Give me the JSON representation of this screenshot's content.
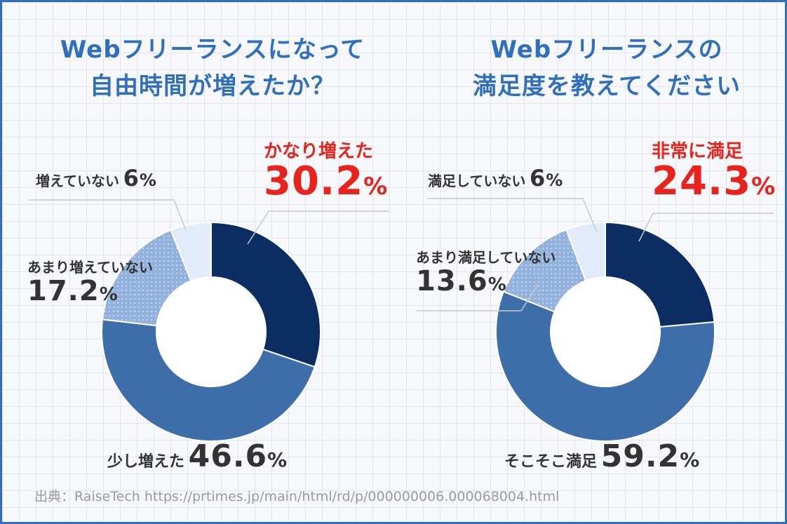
{
  "colors": {
    "frame": "#2f6fbd",
    "title": "#2f6fbd",
    "highlight": "#e8231b",
    "text": "#333333",
    "dark_navy": "#0b2d62",
    "mid_blue": "#3e6ea9",
    "light_blue": "#93b1dd",
    "pale_blue": "#e1ebf9"
  },
  "chart_data": [
    {
      "type": "pie",
      "donut": true,
      "title": [
        "Webフリーランスになって",
        "自由時間が増えたか？"
      ],
      "categories": [
        "かなり増えた",
        "少し増えた",
        "あまり増えていない",
        "増えていない"
      ],
      "values": [
        30.2,
        46.6,
        17.2,
        6
      ],
      "value_labels": [
        "30.2",
        "46.6",
        "17.2",
        "6"
      ],
      "unit": "%",
      "highlight_index": 0
    },
    {
      "type": "pie",
      "donut": true,
      "title": [
        "Webフリーランスの",
        "満足度を教えてください"
      ],
      "categories": [
        "非常に満足",
        "そこそこ満足",
        "あまり満足していない",
        "満足していない"
      ],
      "values": [
        24.3,
        59.2,
        13.6,
        6
      ],
      "value_labels": [
        "24.3",
        "59.2",
        "13.6",
        "6"
      ],
      "unit": "%",
      "highlight_index": 0
    }
  ],
  "source": "出典：RaiseTech https://prtimes.jp/main/html/rd/p/000000006.000068004.html"
}
